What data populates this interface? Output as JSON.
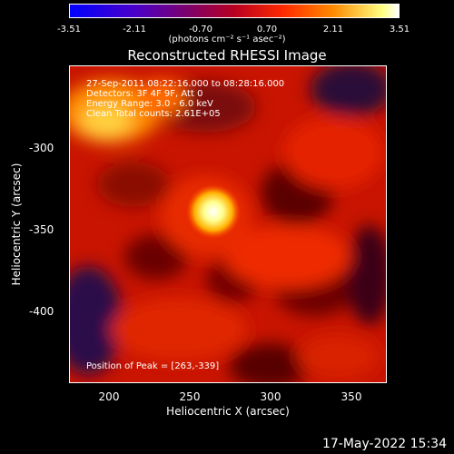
{
  "colorbar": {
    "ticks": [
      "-3.51",
      "-2.11",
      "-0.70",
      "0.70",
      "2.11",
      "3.51"
    ],
    "units": "(photons cm⁻² s⁻¹ asec⁻²)"
  },
  "title": "Reconstructed RHESSI Image",
  "info": {
    "line1": "27-Sep-2011 08:22:16.000 to 08:28:16.000",
    "line2": "Detectors: 3F 4F 9F, Att 0",
    "line3": "Energy Range: 3.0 - 6.0 keV",
    "line4": "Clean    Total counts: 2.61E+05",
    "peak": "Position of Peak = [263,-339]"
  },
  "axes": {
    "xlabel": "Heliocentric X (arcsec)",
    "ylabel": "Heliocentric Y (arcsec)",
    "xticks": [
      "200",
      "250",
      "300",
      "350"
    ],
    "yticks": [
      "-300",
      "-350",
      "-400"
    ],
    "xlim": [
      175,
      370
    ],
    "ylim": [
      -445,
      -250
    ]
  },
  "timestamp": "17-May-2022 15:34"
}
